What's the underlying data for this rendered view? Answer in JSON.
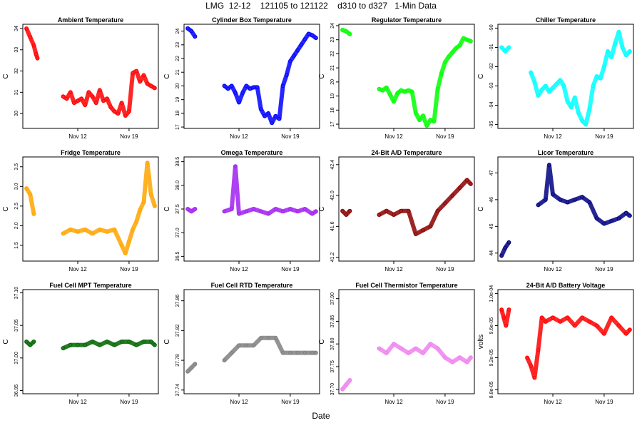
{
  "figure": {
    "title": "LMG  12-12    121105 to 121122    d310 to d327   1-Min Data",
    "xlabel": "Date"
  },
  "chart_data": [
    {
      "type": "scatter",
      "title": "Ambient Temperature",
      "ylabel": "C",
      "color": "#ff0000",
      "x_ticks": [
        "Nov 12",
        "Nov 19"
      ],
      "y_ticks": [
        "30",
        "31",
        "32",
        "33",
        "34"
      ],
      "ylim": [
        29.3,
        34.2
      ],
      "series": [
        {
          "name": "Ambient Temperature",
          "x": [
            0,
            0.5,
            1,
            1.3,
            1.5,
            5,
            5.5,
            6,
            6.5,
            7,
            7.5,
            8,
            8.5,
            9,
            9.5,
            10,
            10.5,
            11,
            11.5,
            12,
            12.5,
            13,
            13.5,
            14,
            14.5,
            15,
            15.5,
            16,
            16.5,
            17,
            17.5
          ],
          "y": [
            34.0,
            33.6,
            33.2,
            32.8,
            32.6,
            30.8,
            30.7,
            31.0,
            30.5,
            30.6,
            30.7,
            30.4,
            31.0,
            30.8,
            30.5,
            31.1,
            30.6,
            30.7,
            30.3,
            30.1,
            30.0,
            30.5,
            29.9,
            30.1,
            31.9,
            32.0,
            31.5,
            31.8,
            31.4,
            31.3,
            31.2
          ]
        }
      ]
    },
    {
      "type": "scatter",
      "title": "Cylinder Box Temperature",
      "ylabel": "C",
      "color": "#0000ff",
      "x_ticks": [
        "Nov 12",
        "Nov 19"
      ],
      "y_ticks": [
        "17",
        "18",
        "19",
        "20",
        "21",
        "22",
        "23",
        "24"
      ],
      "ylim": [
        16.9,
        24.5
      ],
      "series": [
        {
          "name": "Cylinder Box Temperature",
          "x": [
            0,
            0.5,
            1,
            5,
            5.5,
            6,
            6.5,
            7,
            7.5,
            8,
            8.5,
            9,
            9.5,
            10,
            10.5,
            11,
            11.5,
            12,
            12.5,
            13,
            13.5,
            14,
            14.5,
            15,
            15.5,
            16,
            16.5,
            17,
            17.5
          ],
          "y": [
            24.2,
            24.0,
            23.6,
            20.0,
            19.8,
            20.0,
            19.5,
            18.8,
            19.5,
            20.0,
            19.8,
            19.9,
            19.9,
            18.3,
            17.8,
            18.0,
            17.3,
            17.8,
            17.6,
            20.0,
            20.8,
            21.8,
            22.2,
            22.6,
            23.0,
            23.4,
            23.8,
            23.7,
            23.5
          ]
        }
      ]
    },
    {
      "type": "scatter",
      "title": "Regulator Temperature",
      "ylabel": "C",
      "color": "#00ff00",
      "x_ticks": [
        "Nov 12",
        "Nov 19"
      ],
      "y_ticks": [
        "17",
        "18",
        "19",
        "20",
        "21",
        "22",
        "23",
        "24"
      ],
      "ylim": [
        16.7,
        24.1
      ],
      "series": [
        {
          "name": "Regulator Temperature",
          "x": [
            0,
            0.5,
            1,
            5,
            5.5,
            6,
            6.5,
            7,
            7.5,
            8,
            8.5,
            9,
            9.5,
            10,
            10.5,
            11,
            11.5,
            12,
            12.5,
            13,
            13.5,
            14,
            14.5,
            15,
            15.5,
            16,
            16.5,
            17,
            17.5
          ],
          "y": [
            23.7,
            23.6,
            23.4,
            19.5,
            19.4,
            19.6,
            19.1,
            18.6,
            19.2,
            19.4,
            19.3,
            19.4,
            19.3,
            17.8,
            17.3,
            17.6,
            16.9,
            17.3,
            17.2,
            19.5,
            20.6,
            21.4,
            21.8,
            22.1,
            22.4,
            22.6,
            23.1,
            23.0,
            22.9
          ]
        }
      ]
    },
    {
      "type": "scatter",
      "title": "Chiller Temperature",
      "ylabel": "C",
      "color": "#00ffff",
      "x_ticks": [
        "Nov 12",
        "Nov 19"
      ],
      "y_ticks": [
        "-95",
        "-94",
        "-93",
        "-92",
        "-91",
        "-90"
      ],
      "ylim": [
        -95.2,
        -89.8
      ],
      "series": [
        {
          "name": "Chiller Temperature",
          "x": [
            0,
            0.5,
            1,
            4,
            4.5,
            5,
            5.5,
            6,
            6.5,
            7,
            7.5,
            8,
            8.5,
            9,
            9.5,
            10,
            10.5,
            11,
            11.5,
            12,
            12.5,
            13,
            13.5,
            14,
            14.5,
            15,
            15.5,
            16,
            16.5,
            17,
            17.5
          ],
          "y": [
            -91.0,
            -91.2,
            -91.0,
            -92.3,
            -92.8,
            -93.5,
            -93.2,
            -93.0,
            -93.3,
            -93.1,
            -92.9,
            -92.7,
            -93.0,
            -93.8,
            -94.1,
            -93.6,
            -94.4,
            -94.8,
            -95.0,
            -94.2,
            -93.0,
            -92.5,
            -92.6,
            -92.0,
            -91.2,
            -91.5,
            -90.8,
            -90.2,
            -91.0,
            -91.4,
            -91.2
          ]
        }
      ]
    },
    {
      "type": "scatter",
      "title": "Fridge Temperature",
      "ylabel": "C",
      "color": "#ffa500",
      "x_ticks": [
        "Nov 12",
        "Nov 19"
      ],
      "y_ticks": [
        "1.5",
        "2.0",
        "2.5",
        "3.0",
        "3.5"
      ],
      "ylim": [
        1.1,
        3.75
      ],
      "series": [
        {
          "name": "Fridge Temperature",
          "x": [
            0,
            0.5,
            1,
            5,
            6,
            7,
            8,
            9,
            10,
            11,
            12,
            13,
            13.5,
            14,
            14.5,
            15,
            15.5,
            16,
            16.5,
            17,
            17.5
          ],
          "y": [
            2.95,
            2.8,
            2.3,
            1.8,
            1.9,
            1.85,
            1.9,
            1.8,
            1.9,
            1.85,
            1.9,
            1.5,
            1.3,
            1.6,
            1.9,
            2.1,
            2.4,
            2.6,
            3.6,
            2.8,
            2.5
          ]
        }
      ]
    },
    {
      "type": "scatter",
      "title": "Omega Temperature",
      "ylabel": "C",
      "color": "#a020f0",
      "x_ticks": [
        "Nov 12",
        "Nov 19"
      ],
      "y_ticks": [
        "36.5",
        "37.0",
        "37.5",
        "38.0",
        "38.5"
      ],
      "ylim": [
        36.4,
        38.6
      ],
      "series": [
        {
          "name": "Omega Temperature",
          "x": [
            0,
            0.5,
            1,
            5,
            6,
            6.5,
            7,
            8,
            9,
            10,
            11,
            12,
            13,
            14,
            15,
            16,
            17,
            17.5
          ],
          "y": [
            37.5,
            37.45,
            37.5,
            37.45,
            37.5,
            38.4,
            37.4,
            37.45,
            37.5,
            37.45,
            37.4,
            37.5,
            37.45,
            37.5,
            37.45,
            37.5,
            37.4,
            37.45
          ]
        }
      ]
    },
    {
      "type": "scatter",
      "title": "24-Bit A/D Temperature",
      "ylabel": "C",
      "color": "#8b0000",
      "x_ticks": [
        "Nov 12",
        "Nov 19"
      ],
      "y_ticks": [
        "41.2",
        "41.6",
        "42.0",
        "42.4"
      ],
      "ylim": [
        41.15,
        42.5
      ],
      "series": [
        {
          "name": "24-Bit A/D Temperature",
          "x": [
            0,
            0.5,
            1,
            5,
            6,
            7,
            8,
            9,
            10,
            11,
            12,
            13,
            14,
            15,
            16,
            17,
            17.5
          ],
          "y": [
            41.8,
            41.75,
            41.8,
            41.75,
            41.8,
            41.75,
            41.8,
            41.8,
            41.5,
            41.55,
            41.6,
            41.8,
            41.9,
            42.0,
            42.1,
            42.2,
            42.15
          ]
        }
      ]
    },
    {
      "type": "scatter",
      "title": "Licor Temperature",
      "ylabel": "C",
      "color": "#000080",
      "x_ticks": [
        "Nov 12",
        "Nov 19"
      ],
      "y_ticks": [
        "44",
        "45",
        "46",
        "47"
      ],
      "ylim": [
        43.7,
        47.6
      ],
      "series": [
        {
          "name": "Licor Temperature",
          "x": [
            0,
            0.5,
            1,
            5,
            6,
            6.5,
            7,
            8,
            9,
            10,
            11,
            12,
            13,
            14,
            15,
            16,
            17,
            17.5
          ],
          "y": [
            43.9,
            44.2,
            44.4,
            45.8,
            46.0,
            47.3,
            46.2,
            46.0,
            45.9,
            46.0,
            46.1,
            45.9,
            45.3,
            45.1,
            45.2,
            45.3,
            45.5,
            45.4
          ]
        }
      ]
    },
    {
      "type": "scatter",
      "title": "Fuel Cell MPT Temperature",
      "ylabel": "C",
      "color": "#006400",
      "x_ticks": [
        "Nov 12",
        "Nov 19"
      ],
      "y_ticks": [
        "36.95",
        "37.00",
        "37.05",
        "37.10"
      ],
      "ylim": [
        36.945,
        37.105
      ],
      "series": [
        {
          "name": "Fuel Cell MPT Temperature",
          "x": [
            0,
            0.5,
            1,
            5,
            6,
            7,
            8,
            9,
            10,
            11,
            12,
            13,
            14,
            15,
            16,
            17,
            17.5
          ],
          "y": [
            37.025,
            37.02,
            37.025,
            37.015,
            37.02,
            37.02,
            37.02,
            37.025,
            37.02,
            37.025,
            37.02,
            37.025,
            37.025,
            37.02,
            37.025,
            37.025,
            37.02
          ]
        }
      ]
    },
    {
      "type": "scatter",
      "title": "Fuel Cell RTD Temperature",
      "ylabel": "C",
      "color": "#808080",
      "x_ticks": [
        "Nov 12",
        "Nov 19"
      ],
      "y_ticks": [
        "37.74",
        "37.78",
        "37.82",
        "37.86"
      ],
      "ylim": [
        37.735,
        37.875
      ],
      "series": [
        {
          "name": "Fuel Cell RTD Temperature",
          "x": [
            0,
            0.5,
            1,
            5,
            6,
            7,
            8,
            9,
            10,
            11,
            12,
            13,
            14,
            15,
            16,
            17,
            17.5
          ],
          "y": [
            37.765,
            37.77,
            37.775,
            37.78,
            37.79,
            37.8,
            37.8,
            37.8,
            37.81,
            37.81,
            37.81,
            37.79,
            37.79,
            37.79,
            37.79,
            37.79,
            37.79
          ]
        }
      ]
    },
    {
      "type": "scatter",
      "title": "Fuel Cell Thermistor Temperature",
      "ylabel": "C",
      "color": "#ee82ee",
      "x_ticks": [
        "Nov 12",
        "Nov 19"
      ],
      "y_ticks": [
        "37.70",
        "37.75",
        "37.80",
        "37.85",
        "37.90"
      ],
      "ylim": [
        37.69,
        37.92
      ],
      "series": [
        {
          "name": "Fuel Cell Thermistor Temperature",
          "x": [
            0,
            0.5,
            1,
            5,
            6,
            7,
            8,
            9,
            10,
            11,
            12,
            13,
            14,
            15,
            16,
            17,
            17.5
          ],
          "y": [
            37.7,
            37.71,
            37.72,
            37.79,
            37.78,
            37.8,
            37.79,
            37.78,
            37.79,
            37.78,
            37.8,
            37.79,
            37.77,
            37.76,
            37.77,
            37.76,
            37.77
          ]
        }
      ]
    },
    {
      "type": "scatter",
      "title": "24-Bit A/D Battery Voltage",
      "ylabel": "volts",
      "color": "#ff0000",
      "x_ticks": [
        "Nov 12",
        "Nov 19"
      ],
      "y_ticks": [
        "8.8e-05",
        "9.2e-05",
        "9.6e-05",
        "1.0e-04"
      ],
      "ylim": [
        8.75e-05,
        0.0001005
      ],
      "series": [
        {
          "name": "24-Bit A/D Battery Voltage",
          "x": [
            0,
            0.3,
            0.6,
            1,
            3.5,
            4,
            4.5,
            5,
            5.5,
            6,
            7,
            8,
            9,
            10,
            11,
            12,
            13,
            14,
            15,
            16,
            17,
            17.5
          ],
          "y": [
            9.8e-05,
            9.7e-05,
            9.6e-05,
            9.8e-05,
            9.2e-05,
            9.1e-05,
            8.95e-05,
            9.3e-05,
            9.7e-05,
            9.65e-05,
            9.7e-05,
            9.65e-05,
            9.7e-05,
            9.6e-05,
            9.7e-05,
            9.65e-05,
            9.6e-05,
            9.5e-05,
            9.7e-05,
            9.6e-05,
            9.5e-05,
            9.55e-05
          ]
        }
      ]
    }
  ]
}
